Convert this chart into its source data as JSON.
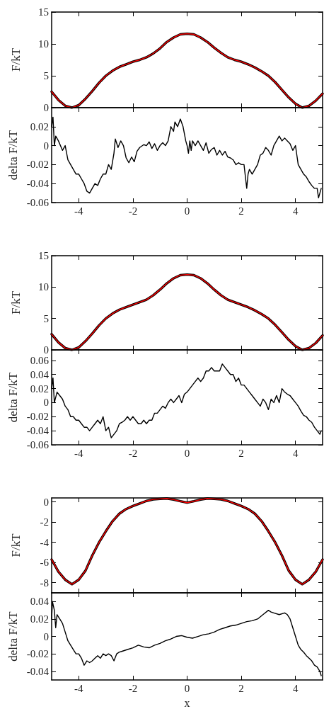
{
  "chart_data": [
    {
      "type": "line",
      "ylabel": "F/kT",
      "xlim": [
        -5,
        5
      ],
      "xticks": [
        -4,
        -2,
        0,
        2,
        4
      ],
      "ylim": [
        0,
        15
      ],
      "yticks": [
        0,
        5,
        10,
        15
      ],
      "tick_labels": "y",
      "x": [
        -5,
        -4.75,
        -4.5,
        -4.25,
        -4,
        -3.75,
        -3.5,
        -3.25,
        -3,
        -2.75,
        -2.5,
        -2.25,
        -2,
        -1.75,
        -1.5,
        -1.25,
        -1,
        -0.75,
        -0.5,
        -0.25,
        0,
        0.25,
        0.5,
        0.75,
        1,
        1.25,
        1.5,
        1.75,
        2,
        2.25,
        2.5,
        2.75,
        3,
        3.25,
        3.5,
        3.75,
        4,
        4.25,
        4.5,
        4.75,
        5
      ],
      "series": [
        {
          "color": "#000000",
          "values": [
            2.5,
            1.2,
            0.3,
            0,
            0.4,
            1.4,
            2.6,
            3.9,
            5.0,
            5.8,
            6.4,
            6.8,
            7.2,
            7.5,
            7.9,
            8.5,
            9.3,
            10.3,
            11.0,
            11.5,
            11.6,
            11.5,
            11.0,
            10.3,
            9.4,
            8.6,
            7.9,
            7.5,
            7.2,
            6.8,
            6.3,
            5.7,
            5.0,
            4.0,
            2.8,
            1.6,
            0.6,
            0,
            0.3,
            1.1,
            2.2
          ]
        },
        {
          "color": "#ff0000",
          "values": [
            2.5,
            1.2,
            0.3,
            0,
            0.4,
            1.4,
            2.6,
            3.9,
            5.0,
            5.8,
            6.4,
            6.8,
            7.2,
            7.5,
            7.9,
            8.5,
            9.3,
            10.3,
            11.0,
            11.5,
            11.6,
            11.5,
            11.0,
            10.3,
            9.4,
            8.6,
            7.9,
            7.5,
            7.2,
            6.8,
            6.3,
            5.7,
            5.0,
            4.0,
            2.8,
            1.6,
            0.6,
            0,
            0.3,
            1.1,
            2.2
          ]
        }
      ]
    },
    {
      "type": "line",
      "ylabel": "delta F/kT",
      "xlim": [
        -5,
        5
      ],
      "xticks": [
        -4,
        -2,
        0,
        2,
        4
      ],
      "ylim": [
        -0.06,
        0.04
      ],
      "yticks": [
        -0.06,
        -0.04,
        -0.02,
        0,
        0.02
      ],
      "x": [
        -5,
        -4.95,
        -4.9,
        -4.85,
        -4.75,
        -4.6,
        -4.5,
        -4.4,
        -4.3,
        -4.2,
        -4.1,
        -4,
        -3.9,
        -3.8,
        -3.7,
        -3.6,
        -3.5,
        -3.4,
        -3.3,
        -3.2,
        -3.1,
        -3,
        -2.9,
        -2.8,
        -2.7,
        -2.65,
        -2.55,
        -2.45,
        -2.35,
        -2.25,
        -2.15,
        -2.05,
        -1.95,
        -1.85,
        -1.75,
        -1.6,
        -1.5,
        -1.4,
        -1.3,
        -1.2,
        -1.1,
        -1,
        -0.9,
        -0.8,
        -0.7,
        -0.6,
        -0.5,
        -0.45,
        -0.35,
        -0.25,
        -0.15,
        -0.05,
        0,
        0.05,
        0.1,
        0.15,
        0.2,
        0.3,
        0.4,
        0.5,
        0.6,
        0.7,
        0.8,
        0.9,
        1,
        1.1,
        1.2,
        1.3,
        1.4,
        1.5,
        1.6,
        1.7,
        1.8,
        1.9,
        2,
        2.1,
        2.2,
        2.25,
        2.3,
        2.4,
        2.5,
        2.6,
        2.7,
        2.8,
        2.9,
        3,
        3.1,
        3.2,
        3.3,
        3.4,
        3.5,
        3.6,
        3.7,
        3.8,
        3.9,
        4,
        4.05,
        4.1,
        4.2,
        4.3,
        4.4,
        4.5,
        4.6,
        4.7,
        4.8,
        4.85,
        4.9,
        4.95
      ],
      "series": [
        {
          "color": "#000000",
          "values": [
            0.02,
            0.03,
            0,
            0.01,
            0.005,
            -0.005,
            0,
            -0.015,
            -0.02,
            -0.025,
            -0.03,
            -0.03,
            -0.035,
            -0.04,
            -0.048,
            -0.05,
            -0.045,
            -0.04,
            -0.042,
            -0.035,
            -0.03,
            -0.03,
            -0.02,
            -0.025,
            -0.008,
            0.007,
            -0.002,
            0.005,
            0,
            -0.013,
            -0.018,
            -0.012,
            -0.017,
            -0.006,
            -0.002,
            0.001,
            0,
            0.004,
            -0.003,
            0.002,
            -0.005,
            0,
            0.003,
            0,
            0.005,
            0.02,
            0.015,
            0.025,
            0.02,
            0.028,
            0.02,
            0.005,
            0,
            -0.008,
            0.005,
            -0.005,
            0.005,
            0,
            0.005,
            0,
            -0.005,
            0.003,
            -0.008,
            -0.004,
            -0.002,
            -0.01,
            -0.005,
            -0.01,
            -0.006,
            -0.012,
            -0.013,
            -0.015,
            -0.02,
            -0.018,
            -0.02,
            -0.02,
            -0.045,
            -0.03,
            -0.025,
            -0.03,
            -0.025,
            -0.02,
            -0.01,
            -0.008,
            -0.002,
            -0.005,
            -0.01,
            0,
            0.005,
            0.01,
            0.005,
            0.008,
            0.005,
            0.002,
            -0.005,
            0,
            -0.01,
            -0.02,
            -0.025,
            -0.03,
            -0.033,
            -0.038,
            -0.042,
            -0.045,
            -0.045,
            -0.055,
            -0.05,
            -0.045
          ]
        }
      ]
    },
    {
      "type": "line",
      "ylabel": "F/kT",
      "xlim": [
        -5,
        5
      ],
      "xticks": [
        -4,
        -2,
        0,
        2,
        4
      ],
      "ylim": [
        0,
        15
      ],
      "yticks": [
        0,
        5,
        10,
        15
      ],
      "tick_labels": "y",
      "x": [
        -5,
        -4.75,
        -4.5,
        -4.25,
        -4,
        -3.75,
        -3.5,
        -3.25,
        -3,
        -2.75,
        -2.5,
        -2.25,
        -2,
        -1.75,
        -1.5,
        -1.25,
        -1,
        -0.75,
        -0.5,
        -0.25,
        0,
        0.25,
        0.5,
        0.75,
        1,
        1.25,
        1.5,
        1.75,
        2,
        2.25,
        2.5,
        2.75,
        3,
        3.25,
        3.5,
        3.75,
        4,
        4.25,
        4.5,
        4.75,
        5
      ],
      "series": [
        {
          "color": "#000000",
          "values": [
            2.5,
            1.2,
            0.3,
            0,
            0.4,
            1.4,
            2.6,
            3.9,
            5.0,
            5.8,
            6.4,
            6.8,
            7.2,
            7.6,
            8.0,
            8.7,
            9.6,
            10.6,
            11.4,
            11.9,
            12.0,
            11.9,
            11.4,
            10.6,
            9.6,
            8.7,
            8.0,
            7.6,
            7.2,
            6.8,
            6.3,
            5.7,
            5.0,
            4.0,
            2.8,
            1.6,
            0.6,
            0,
            0.3,
            1.1,
            2.3
          ]
        },
        {
          "color": "#ff0000",
          "values": [
            2.5,
            1.2,
            0.3,
            0,
            0.4,
            1.4,
            2.6,
            3.9,
            5.0,
            5.8,
            6.4,
            6.8,
            7.2,
            7.6,
            8.0,
            8.7,
            9.6,
            10.6,
            11.4,
            11.9,
            12.0,
            11.9,
            11.4,
            10.6,
            9.6,
            8.7,
            8.0,
            7.6,
            7.2,
            6.8,
            6.3,
            5.7,
            5.0,
            4.0,
            2.8,
            1.6,
            0.6,
            0,
            0.3,
            1.1,
            2.3
          ]
        }
      ]
    },
    {
      "type": "line",
      "ylabel": "delta F/kT",
      "xlim": [
        -5,
        5
      ],
      "xticks": [
        -4,
        -2,
        0,
        2,
        4
      ],
      "ylim": [
        -0.06,
        0.075
      ],
      "yticks": [
        -0.06,
        -0.04,
        -0.02,
        0,
        0.02,
        0.04,
        0.06
      ],
      "x": [
        -5,
        -4.95,
        -4.9,
        -4.8,
        -4.7,
        -4.6,
        -4.5,
        -4.4,
        -4.3,
        -4.2,
        -4.1,
        -4,
        -3.9,
        -3.8,
        -3.7,
        -3.6,
        -3.5,
        -3.4,
        -3.3,
        -3.2,
        -3.1,
        -3,
        -2.9,
        -2.8,
        -2.7,
        -2.6,
        -2.5,
        -2.4,
        -2.3,
        -2.2,
        -2.1,
        -2,
        -1.9,
        -1.8,
        -1.7,
        -1.6,
        -1.5,
        -1.4,
        -1.3,
        -1.2,
        -1.1,
        -1,
        -0.9,
        -0.8,
        -0.7,
        -0.6,
        -0.5,
        -0.4,
        -0.3,
        -0.2,
        -0.1,
        0,
        0.1,
        0.2,
        0.3,
        0.4,
        0.5,
        0.6,
        0.7,
        0.8,
        0.9,
        1,
        1.1,
        1.2,
        1.3,
        1.4,
        1.5,
        1.6,
        1.7,
        1.8,
        1.9,
        2,
        2.1,
        2.2,
        2.3,
        2.4,
        2.5,
        2.6,
        2.7,
        2.8,
        2.9,
        3,
        3.1,
        3.2,
        3.3,
        3.4,
        3.5,
        3.6,
        3.7,
        3.8,
        3.9,
        4,
        4.1,
        4.2,
        4.3,
        4.4,
        4.5,
        4.6,
        4.7,
        4.8,
        4.9,
        4.95
      ],
      "series": [
        {
          "color": "#000000",
          "values": [
            0.02,
            0.035,
            0,
            0.015,
            0.01,
            0.005,
            -0.005,
            -0.01,
            -0.02,
            -0.02,
            -0.025,
            -0.025,
            -0.03,
            -0.035,
            -0.035,
            -0.04,
            -0.035,
            -0.03,
            -0.025,
            -0.03,
            -0.02,
            -0.04,
            -0.035,
            -0.05,
            -0.045,
            -0.04,
            -0.03,
            -0.028,
            -0.025,
            -0.02,
            -0.025,
            -0.02,
            -0.025,
            -0.03,
            -0.03,
            -0.025,
            -0.03,
            -0.025,
            -0.025,
            -0.015,
            -0.015,
            -0.01,
            -0.005,
            -0.008,
            0,
            0.005,
            0,
            0.005,
            0.01,
            0,
            0.012,
            0.015,
            0.02,
            0.025,
            0.03,
            0.035,
            0.03,
            0.035,
            0.045,
            0.045,
            0.05,
            0.045,
            0.045,
            0.045,
            0.055,
            0.05,
            0.045,
            0.04,
            0.04,
            0.03,
            0.035,
            0.025,
            0.025,
            0.02,
            0.015,
            0.01,
            0.005,
            0,
            -0.005,
            0.005,
            0,
            -0.01,
            0.005,
            0,
            0.01,
            0,
            0.02,
            0.015,
            0.012,
            0.01,
            0.005,
            0,
            -0.005,
            -0.012,
            -0.018,
            -0.02,
            -0.025,
            -0.028,
            -0.035,
            -0.04,
            -0.045,
            -0.04
          ]
        }
      ]
    },
    {
      "type": "line",
      "ylabel": "F/kT",
      "xlim": [
        -5,
        5
      ],
      "xticks": [
        -4,
        -2,
        0,
        2,
        4
      ],
      "ylim": [
        -9,
        0.4
      ],
      "yticks": [
        -8,
        -6,
        -4,
        -2,
        0
      ],
      "tick_labels": "y",
      "x": [
        -5,
        -4.75,
        -4.5,
        -4.25,
        -4,
        -3.75,
        -3.5,
        -3.25,
        -3,
        -2.75,
        -2.5,
        -2.25,
        -2,
        -1.75,
        -1.5,
        -1.25,
        -1,
        -0.75,
        -0.5,
        -0.25,
        0,
        0.25,
        0.5,
        0.75,
        1,
        1.25,
        1.5,
        1.75,
        2,
        2.25,
        2.5,
        2.75,
        3,
        3.25,
        3.5,
        3.75,
        4,
        4.25,
        4.5,
        4.75,
        5
      ],
      "series": [
        {
          "color": "#000000",
          "values": [
            -5.7,
            -6.9,
            -7.7,
            -8.15,
            -7.7,
            -6.8,
            -5.3,
            -4.0,
            -2.9,
            -1.9,
            -1.16,
            -0.7,
            -0.4,
            -0.15,
            0.1,
            0.25,
            0.3,
            0.35,
            0.23,
            0.07,
            -0.07,
            0.07,
            0.23,
            0.35,
            0.3,
            0.25,
            0.1,
            -0.15,
            -0.4,
            -0.7,
            -1.16,
            -1.9,
            -2.9,
            -4.0,
            -5.3,
            -6.8,
            -7.7,
            -8.15,
            -7.7,
            -6.9,
            -5.7
          ]
        },
        {
          "color": "#ff0000",
          "values": [
            -5.7,
            -6.9,
            -7.7,
            -8.15,
            -7.7,
            -6.8,
            -5.3,
            -4.0,
            -2.9,
            -1.9,
            -1.16,
            -0.7,
            -0.4,
            -0.15,
            0.1,
            0.25,
            0.3,
            0.35,
            0.23,
            0.07,
            -0.07,
            0.07,
            0.23,
            0.35,
            0.3,
            0.25,
            0.1,
            -0.15,
            -0.4,
            -0.7,
            -1.16,
            -1.9,
            -2.9,
            -4.0,
            -5.3,
            -6.8,
            -7.7,
            -8.15,
            -7.7,
            -6.9,
            -5.7
          ]
        }
      ]
    },
    {
      "type": "line",
      "ylabel": "delta F/kT",
      "xlabel": "x",
      "xlim": [
        -5,
        5
      ],
      "xticks": [
        -4,
        -2,
        0,
        2,
        4
      ],
      "ylim": [
        -0.05,
        0.05
      ],
      "yticks": [
        -0.04,
        -0.02,
        0,
        0.02,
        0.04
      ],
      "x": [
        -5,
        -4.97,
        -4.9,
        -4.85,
        -4.8,
        -4.7,
        -4.6,
        -4.5,
        -4.4,
        -4.3,
        -4.2,
        -4.1,
        -4,
        -3.9,
        -3.8,
        -3.7,
        -3.6,
        -3.5,
        -3.4,
        -3.3,
        -3.2,
        -3.1,
        -3,
        -2.9,
        -2.8,
        -2.7,
        -2.6,
        -2.5,
        -2.4,
        -2.2,
        -2,
        -1.8,
        -1.6,
        -1.4,
        -1.2,
        -1,
        -0.8,
        -0.6,
        -0.4,
        -0.2,
        0,
        0.2,
        0.4,
        0.6,
        0.8,
        1,
        1.2,
        1.4,
        1.6,
        1.8,
        2,
        2.2,
        2.4,
        2.6,
        2.8,
        3,
        3.1,
        3.2,
        3.4,
        3.6,
        3.7,
        3.8,
        3.9,
        4,
        4.1,
        4.2,
        4.3,
        4.4,
        4.5,
        4.6,
        4.7,
        4.8,
        4.9,
        4.95
      ],
      "series": [
        {
          "color": "#000000",
          "values": [
            0.02,
            0.04,
            0.03,
            0.01,
            0.025,
            0.02,
            0.015,
            0.005,
            -0.005,
            -0.01,
            -0.015,
            -0.02,
            -0.02,
            -0.025,
            -0.033,
            -0.028,
            -0.03,
            -0.028,
            -0.025,
            -0.022,
            -0.025,
            -0.02,
            -0.022,
            -0.02,
            -0.022,
            -0.028,
            -0.02,
            -0.018,
            -0.017,
            -0.015,
            -0.013,
            -0.01,
            -0.012,
            -0.013,
            -0.01,
            -0.008,
            -0.005,
            -0.003,
            0,
            0.001,
            -0.001,
            -0.002,
            0,
            0.002,
            0.003,
            0.005,
            0.008,
            0.01,
            0.012,
            0.013,
            0.015,
            0.017,
            0.018,
            0.02,
            0.025,
            0.03,
            0.028,
            0.027,
            0.025,
            0.027,
            0.025,
            0.02,
            0.01,
            0,
            -0.01,
            -0.015,
            -0.018,
            -0.022,
            -0.025,
            -0.028,
            -0.033,
            -0.035,
            -0.04,
            -0.045
          ]
        }
      ]
    }
  ]
}
